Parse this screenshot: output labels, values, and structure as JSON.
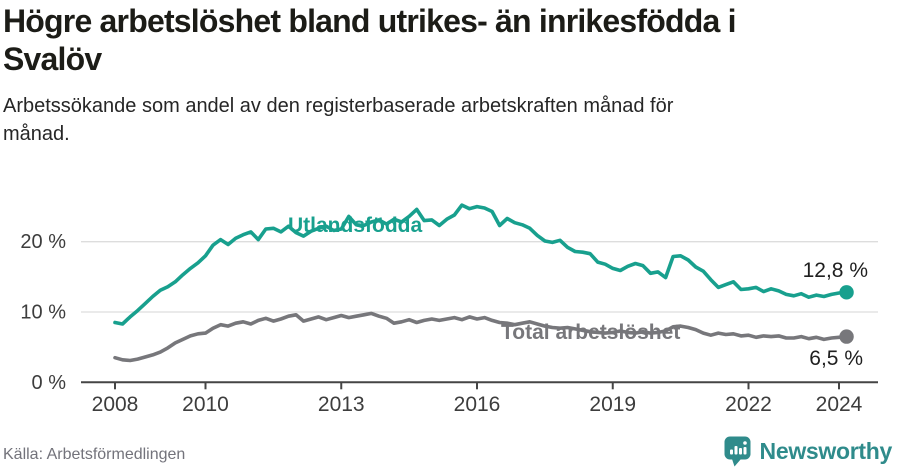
{
  "header": {
    "title": "Högre arbetslöshet bland utrikes- än inrikesfödda i\nSvalöv",
    "subtitle": "Arbetssökande som andel av den registerbaserade arbetskraften månad för\nmånad."
  },
  "footer": {
    "source": "Källa: Arbetsförmedlingen",
    "brand": "Newsworthy"
  },
  "colors": {
    "foreign_born_line": "#18a08e",
    "total_line": "#77777b",
    "logo_teal": "#2f8b8b",
    "gridline": "#dddddd",
    "axis": "#454545"
  },
  "chart_data": {
    "type": "line",
    "title": "Högre arbetslöshet bland utrikes- än inrikesfödda i Svalöv",
    "subtitle": "Arbetssökande som andel av den registerbaserade arbetskraften månad för månad.",
    "x_start": 2008,
    "x_step_years": 0.16667,
    "xlim": [
      2007.25,
      2024.9
    ],
    "ylim": [
      0,
      27
    ],
    "grid": "horizontal",
    "legend_position": "inline-labels",
    "x_ticks": [
      {
        "year": 2008,
        "label": "2008"
      },
      {
        "year": 2010,
        "label": "2010"
      },
      {
        "year": 2013,
        "label": "2013"
      },
      {
        "year": 2016,
        "label": "2016"
      },
      {
        "year": 2019,
        "label": "2019"
      },
      {
        "year": 2022,
        "label": "2022"
      },
      {
        "year": 2024,
        "label": "2024"
      }
    ],
    "y_ticks": [
      {
        "value": 0,
        "label": "0 %"
      },
      {
        "value": 10,
        "label": "10 %"
      },
      {
        "value": 20,
        "label": "20 %"
      }
    ],
    "series": [
      {
        "name": "Utlandsfödda",
        "color": "#18a08e",
        "end_label": "12,8 %",
        "end_value": 12.8,
        "values": [
          8.5,
          8.3,
          9.3,
          10.2,
          11.2,
          12.2,
          13.1,
          13.6,
          14.3,
          15.3,
          16.2,
          17.0,
          18.0,
          19.5,
          20.3,
          19.6,
          20.5,
          21.0,
          21.4,
          20.3,
          21.8,
          21.9,
          21.4,
          22.2,
          21.3,
          20.8,
          21.5,
          21.9,
          22.2,
          21.6,
          21.8,
          23.6,
          22.4,
          22.3,
          22.8,
          23.1,
          22.5,
          23.2,
          22.8,
          23.6,
          24.6,
          23.0,
          23.1,
          22.3,
          23.2,
          23.8,
          25.2,
          24.7,
          25.0,
          24.8,
          24.3,
          22.3,
          23.3,
          22.7,
          22.4,
          21.9,
          20.9,
          20.1,
          19.9,
          20.2,
          19.2,
          18.6,
          18.5,
          18.3,
          17.1,
          16.8,
          16.2,
          15.9,
          16.5,
          16.9,
          16.6,
          15.5,
          15.7,
          14.9,
          17.9,
          18.0,
          17.4,
          16.4,
          15.8,
          14.6,
          13.5,
          13.9,
          14.3,
          13.2,
          13.3,
          13.5,
          12.9,
          13.3,
          13.0,
          12.5,
          12.3,
          12.6,
          12.1,
          12.4,
          12.2,
          12.5,
          12.7,
          12.8
        ]
      },
      {
        "name": "Total arbetslöshet",
        "color": "#77777b",
        "end_label": "6,5 %",
        "end_value": 6.5,
        "values": [
          3.5,
          3.2,
          3.1,
          3.3,
          3.6,
          3.9,
          4.3,
          4.9,
          5.6,
          6.1,
          6.6,
          6.9,
          7.0,
          7.7,
          8.2,
          8.0,
          8.4,
          8.6,
          8.3,
          8.8,
          9.1,
          8.7,
          9.0,
          9.4,
          9.6,
          8.7,
          9.0,
          9.3,
          8.9,
          9.2,
          9.5,
          9.2,
          9.4,
          9.6,
          9.8,
          9.4,
          9.1,
          8.4,
          8.6,
          8.9,
          8.5,
          8.8,
          9.0,
          8.8,
          9.0,
          9.2,
          8.9,
          9.3,
          9.0,
          9.2,
          8.8,
          8.5,
          8.4,
          8.2,
          8.4,
          8.6,
          8.3,
          8.0,
          7.8,
          7.7,
          7.8,
          7.6,
          7.4,
          7.2,
          7.1,
          7.0,
          7.1,
          7.3,
          7.1,
          7.0,
          7.2,
          7.0,
          7.1,
          7.3,
          7.9,
          8.0,
          7.8,
          7.5,
          7.0,
          6.7,
          7.0,
          6.8,
          6.9,
          6.6,
          6.7,
          6.4,
          6.6,
          6.5,
          6.6,
          6.3,
          6.3,
          6.5,
          6.2,
          6.4,
          6.1,
          6.3,
          6.4,
          6.5
        ]
      }
    ]
  }
}
